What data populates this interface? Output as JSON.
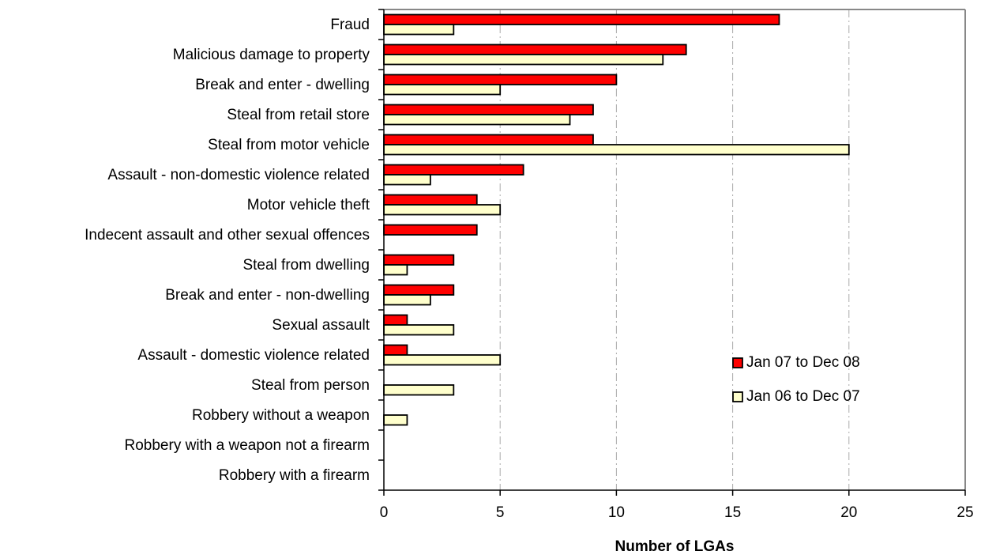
{
  "chart_data": {
    "type": "bar",
    "orientation": "horizontal",
    "title": "",
    "xlabel": "Number of LGAs",
    "ylabel": "",
    "xlim": [
      0,
      25
    ],
    "xticks": [
      0,
      5,
      10,
      15,
      20,
      25
    ],
    "xtick_labels": [
      "0",
      "5",
      "10",
      "15",
      "20",
      "25"
    ],
    "grid": "vertical dashed",
    "legend_position": "right",
    "categories": [
      "Fraud",
      "Malicious damage to property",
      "Break and enter - dwelling",
      "Steal from retail store",
      "Steal from motor vehicle",
      "Assault - non-domestic violence related",
      "Motor vehicle theft",
      "Indecent assault and other sexual offences",
      "Steal from dwelling",
      "Break and enter - non-dwelling",
      "Sexual assault",
      "Assault - domestic violence related",
      "Steal from person",
      "Robbery without a weapon",
      "Robbery with a weapon not a firearm",
      "Robbery with a firearm"
    ],
    "series": [
      {
        "name": "Jan 07 to Dec 08",
        "color": "#ff0000",
        "values": [
          17,
          13,
          10,
          9,
          9,
          6,
          4,
          4,
          3,
          3,
          1,
          1,
          0,
          0,
          0,
          0
        ]
      },
      {
        "name": "Jan 06 to Dec 07",
        "color": "#ffffcc",
        "values": [
          3,
          12,
          5,
          8,
          20,
          2,
          5,
          0,
          1,
          2,
          3,
          5,
          3,
          1,
          0,
          0
        ]
      }
    ]
  }
}
